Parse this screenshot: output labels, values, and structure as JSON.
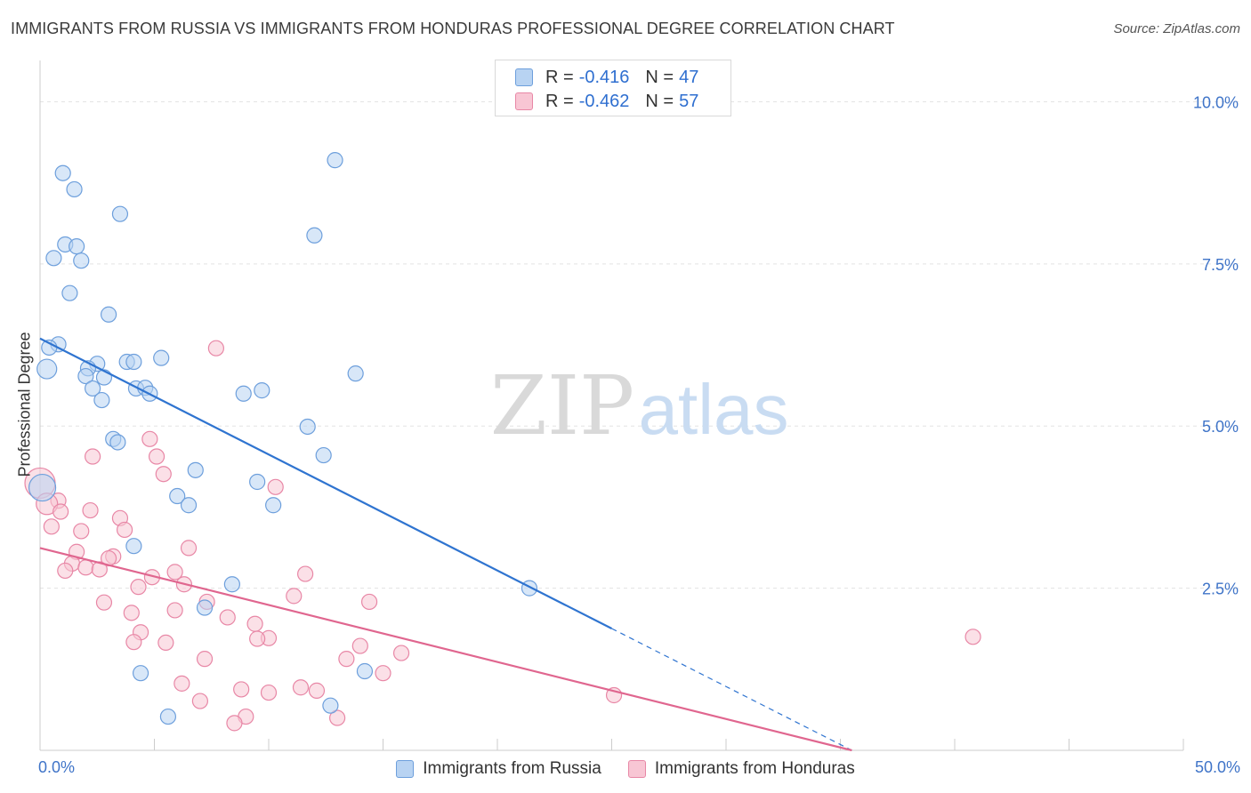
{
  "title": "IMMIGRANTS FROM RUSSIA VS IMMIGRANTS FROM HONDURAS PROFESSIONAL DEGREE CORRELATION CHART",
  "source": "Source: ZipAtlas.com",
  "watermark": {
    "zip": "ZIP",
    "atlas": "atlas"
  },
  "legend_stats": [
    {
      "r_label": "R =",
      "r_value": "-0.416",
      "n_label": "N =",
      "n_value": "47"
    },
    {
      "r_label": "R =",
      "r_value": "-0.462",
      "n_label": "N =",
      "n_value": "57"
    }
  ],
  "colors": {
    "russia_fill": "#b8d3f2",
    "russia_stroke": "#6d9fdc",
    "russia_line": "#2f74d0",
    "honduras_fill": "#f8c6d4",
    "honduras_stroke": "#e887a6",
    "honduras_line": "#e0668f",
    "axis_text": "#3f74c8",
    "grid": "#e3e3e3"
  },
  "chart_data": {
    "type": "scatter",
    "xlabel": "",
    "ylabel": "Professional Degree",
    "xlim": [
      0,
      50
    ],
    "ylim": [
      0,
      10.5
    ],
    "x_tick_labels": [
      "0.0%",
      "50.0%"
    ],
    "y_tick_values": [
      2.5,
      5.0,
      7.5,
      10.0
    ],
    "y_tick_labels": [
      "2.5%",
      "5.0%",
      "7.5%",
      "10.0%"
    ],
    "series": [
      {
        "name": "Immigrants from Russia",
        "points": [
          [
            1.0,
            8.9
          ],
          [
            1.5,
            8.65
          ],
          [
            3.5,
            8.27
          ],
          [
            1.1,
            7.8
          ],
          [
            1.6,
            7.77
          ],
          [
            0.6,
            7.59
          ],
          [
            1.8,
            7.55
          ],
          [
            1.3,
            7.05
          ],
          [
            3.0,
            6.72
          ],
          [
            12.9,
            9.1
          ],
          [
            12.0,
            7.94
          ],
          [
            0.8,
            6.26
          ],
          [
            0.4,
            6.21
          ],
          [
            0.3,
            5.88
          ],
          [
            2.5,
            5.96
          ],
          [
            3.8,
            5.99
          ],
          [
            4.1,
            5.99
          ],
          [
            5.3,
            6.05
          ],
          [
            2.1,
            5.89
          ],
          [
            2.0,
            5.77
          ],
          [
            2.8,
            5.75
          ],
          [
            4.2,
            5.58
          ],
          [
            4.6,
            5.59
          ],
          [
            2.3,
            5.58
          ],
          [
            4.8,
            5.5
          ],
          [
            2.7,
            5.4
          ],
          [
            8.9,
            5.5
          ],
          [
            9.7,
            5.55
          ],
          [
            13.8,
            5.81
          ],
          [
            11.7,
            4.99
          ],
          [
            12.4,
            4.55
          ],
          [
            3.2,
            4.8
          ],
          [
            3.4,
            4.75
          ],
          [
            6.8,
            4.32
          ],
          [
            9.5,
            4.14
          ],
          [
            6.0,
            3.92
          ],
          [
            6.5,
            3.78
          ],
          [
            10.2,
            3.78
          ],
          [
            4.1,
            3.15
          ],
          [
            8.4,
            2.56
          ],
          [
            7.2,
            2.2
          ],
          [
            21.4,
            2.5
          ],
          [
            4.4,
            1.19
          ],
          [
            14.2,
            1.22
          ],
          [
            5.6,
            0.52
          ],
          [
            12.7,
            0.69
          ],
          [
            0.1,
            4.05
          ]
        ]
      },
      {
        "name": "Immigrants from Honduras",
        "points": [
          [
            7.7,
            6.2
          ],
          [
            4.8,
            4.8
          ],
          [
            2.3,
            4.53
          ],
          [
            5.1,
            4.53
          ],
          [
            5.4,
            4.26
          ],
          [
            10.3,
            4.06
          ],
          [
            0.0,
            4.12
          ],
          [
            0.8,
            3.85
          ],
          [
            0.3,
            3.8
          ],
          [
            0.9,
            3.68
          ],
          [
            2.2,
            3.7
          ],
          [
            3.5,
            3.58
          ],
          [
            3.7,
            3.4
          ],
          [
            0.5,
            3.45
          ],
          [
            1.8,
            3.38
          ],
          [
            6.5,
            3.12
          ],
          [
            1.6,
            3.06
          ],
          [
            3.2,
            2.99
          ],
          [
            3.0,
            2.96
          ],
          [
            1.4,
            2.88
          ],
          [
            2.0,
            2.82
          ],
          [
            1.1,
            2.77
          ],
          [
            2.6,
            2.79
          ],
          [
            5.9,
            2.75
          ],
          [
            11.6,
            2.72
          ],
          [
            4.9,
            2.67
          ],
          [
            4.3,
            2.52
          ],
          [
            6.3,
            2.56
          ],
          [
            11.1,
            2.38
          ],
          [
            7.3,
            2.29
          ],
          [
            14.4,
            2.29
          ],
          [
            2.8,
            2.28
          ],
          [
            5.9,
            2.16
          ],
          [
            4.0,
            2.12
          ],
          [
            8.2,
            2.05
          ],
          [
            9.4,
            1.95
          ],
          [
            4.4,
            1.82
          ],
          [
            10.0,
            1.73
          ],
          [
            9.5,
            1.72
          ],
          [
            4.1,
            1.67
          ],
          [
            5.5,
            1.66
          ],
          [
            14.0,
            1.61
          ],
          [
            15.8,
            1.5
          ],
          [
            40.8,
            1.75
          ],
          [
            7.2,
            1.41
          ],
          [
            13.4,
            1.41
          ],
          [
            15.0,
            1.19
          ],
          [
            6.2,
            1.03
          ],
          [
            11.4,
            0.97
          ],
          [
            8.8,
            0.94
          ],
          [
            10.0,
            0.89
          ],
          [
            12.1,
            0.92
          ],
          [
            25.1,
            0.85
          ],
          [
            7.0,
            0.76
          ],
          [
            9.0,
            0.52
          ],
          [
            13.0,
            0.5
          ],
          [
            8.5,
            0.42
          ]
        ]
      }
    ],
    "trendlines": [
      {
        "series": "Immigrants from Russia",
        "x_start": 0,
        "y_start": 6.35,
        "x_solid_end": 25,
        "x_end": 35.5,
        "y_end": 0.0,
        "dashed_after_solid": true
      },
      {
        "series": "Immigrants from Honduras",
        "x_start": 0,
        "y_start": 3.12,
        "x_end": 35.5,
        "y_end": 0.0
      }
    ],
    "legend": [
      {
        "label": "Immigrants from Russia"
      },
      {
        "label": "Immigrants from Honduras"
      }
    ]
  }
}
